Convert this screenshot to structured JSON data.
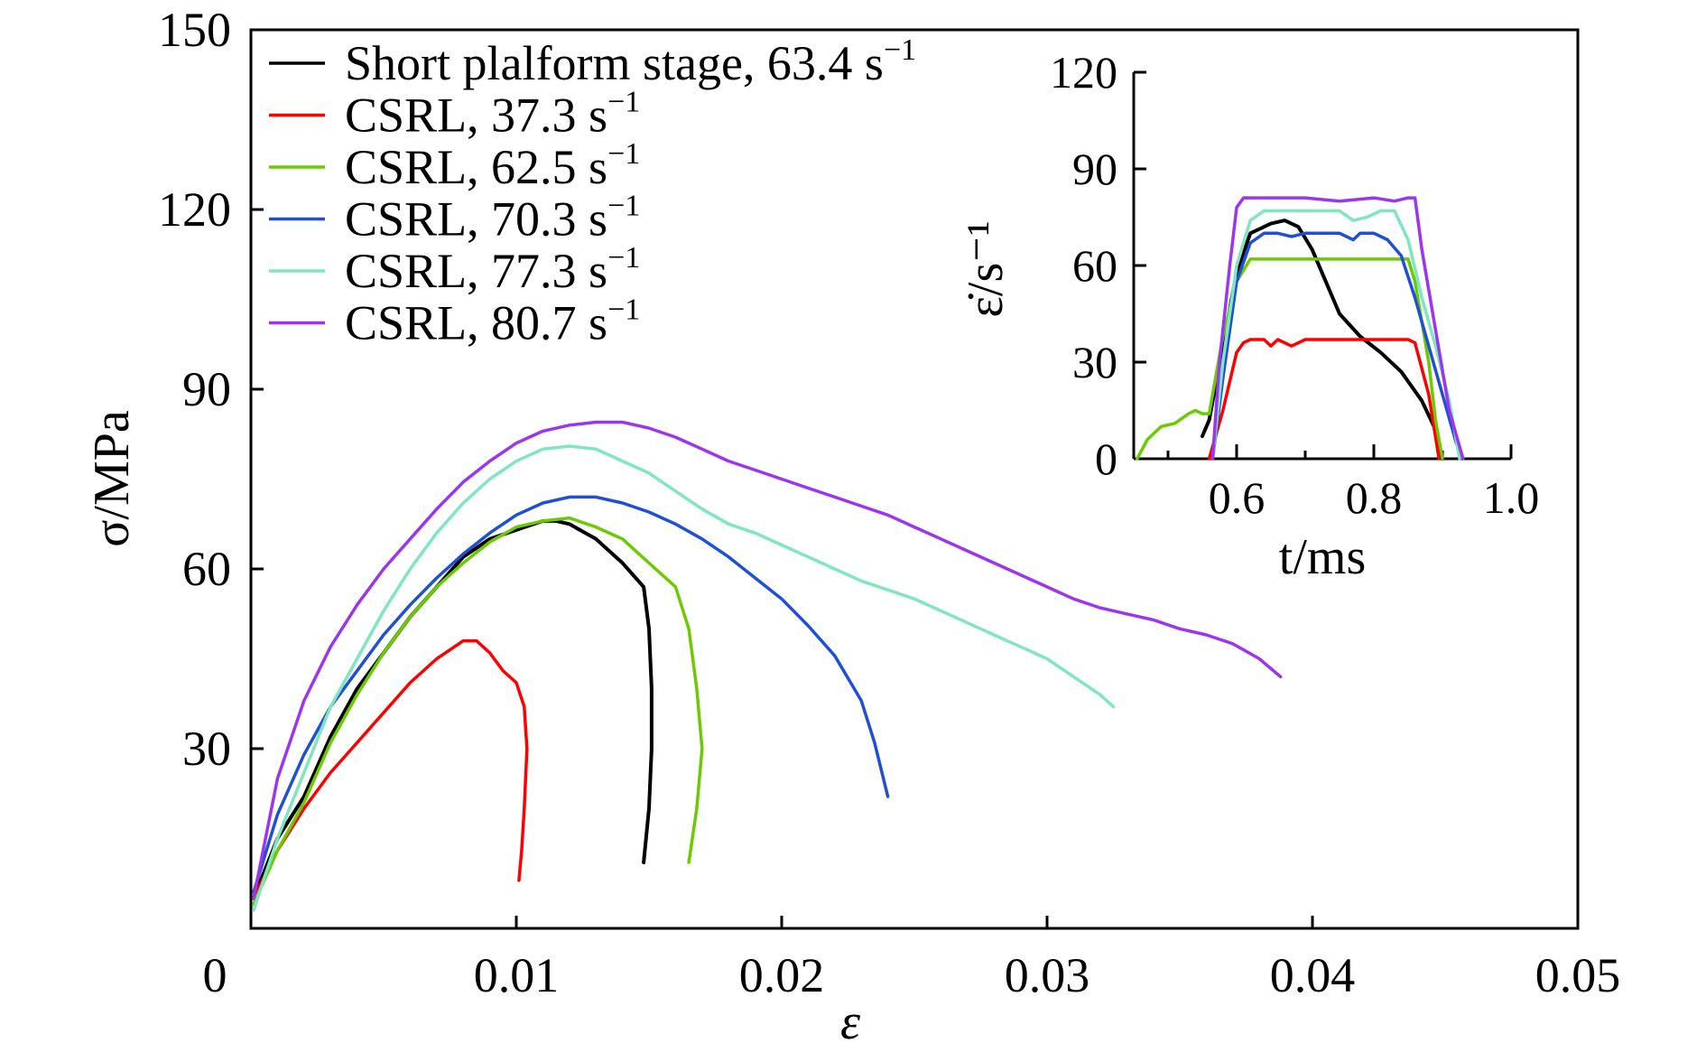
{
  "chart_data": [
    {
      "type": "line",
      "xlabel": "ε",
      "ylabel": "σ/MPa",
      "xlim": [
        0,
        0.05
      ],
      "ylim": [
        0,
        150
      ],
      "xticks": [
        "0",
        "0.01",
        "0.02",
        "0.03",
        "0.04",
        "0.05"
      ],
      "yticks": [
        "30",
        "60",
        "90",
        "120",
        "150"
      ],
      "grid": false,
      "legend_position": "top-left",
      "series": [
        {
          "name": "Short plalform stage, 63.4 s⁻¹",
          "color": "#000000",
          "points": [
            [
              0.0001,
              5
            ],
            [
              0.001,
              15
            ],
            [
              0.002,
              22
            ],
            [
              0.003,
              32
            ],
            [
              0.004,
              40
            ],
            [
              0.005,
              46
            ],
            [
              0.006,
              52
            ],
            [
              0.007,
              57
            ],
            [
              0.008,
              62
            ],
            [
              0.009,
              65
            ],
            [
              0.01,
              66.5
            ],
            [
              0.011,
              68
            ],
            [
              0.0115,
              68
            ],
            [
              0.012,
              67.5
            ],
            [
              0.013,
              65
            ],
            [
              0.014,
              61
            ],
            [
              0.0148,
              57
            ],
            [
              0.015,
              50
            ],
            [
              0.0151,
              40
            ],
            [
              0.0151,
              30
            ],
            [
              0.015,
              20
            ],
            [
              0.0148,
              11
            ]
          ]
        },
        {
          "name": "CSRL, 37.3 s⁻¹",
          "color": "#ff0000",
          "points": [
            [
              0.0001,
              5
            ],
            [
              0.001,
              13
            ],
            [
              0.002,
              20
            ],
            [
              0.003,
              26
            ],
            [
              0.004,
              31
            ],
            [
              0.005,
              36
            ],
            [
              0.006,
              41
            ],
            [
              0.007,
              45
            ],
            [
              0.008,
              48
            ],
            [
              0.0085,
              48
            ],
            [
              0.009,
              46
            ],
            [
              0.0095,
              43
            ],
            [
              0.01,
              41
            ],
            [
              0.0103,
              37
            ],
            [
              0.0104,
              30
            ],
            [
              0.0103,
              20
            ],
            [
              0.0102,
              13
            ],
            [
              0.0101,
              8
            ]
          ]
        },
        {
          "name": "CSRL, 62.5 s⁻¹",
          "color": "#6ccb00",
          "points": [
            [
              0.0001,
              4
            ],
            [
              0.001,
              13
            ],
            [
              0.002,
              21
            ],
            [
              0.003,
              31
            ],
            [
              0.004,
              39
            ],
            [
              0.005,
              46
            ],
            [
              0.006,
              52
            ],
            [
              0.007,
              57
            ],
            [
              0.008,
              61
            ],
            [
              0.009,
              64.5
            ],
            [
              0.01,
              67
            ],
            [
              0.011,
              68
            ],
            [
              0.012,
              68.5
            ],
            [
              0.013,
              67
            ],
            [
              0.014,
              65
            ],
            [
              0.015,
              61
            ],
            [
              0.016,
              57
            ],
            [
              0.0165,
              50
            ],
            [
              0.0168,
              40
            ],
            [
              0.017,
              30
            ],
            [
              0.0168,
              20
            ],
            [
              0.0165,
              11
            ]
          ]
        },
        {
          "name": "CSRL, 70.3 s⁻¹",
          "color": "#1f4fd6",
          "points": [
            [
              0.0001,
              6
            ],
            [
              0.001,
              19
            ],
            [
              0.002,
              29
            ],
            [
              0.003,
              37
            ],
            [
              0.004,
              43
            ],
            [
              0.005,
              49
            ],
            [
              0.006,
              54
            ],
            [
              0.007,
              58.5
            ],
            [
              0.008,
              62.5
            ],
            [
              0.009,
              66
            ],
            [
              0.01,
              69
            ],
            [
              0.011,
              71
            ],
            [
              0.012,
              72
            ],
            [
              0.013,
              72
            ],
            [
              0.014,
              71
            ],
            [
              0.015,
              69.5
            ],
            [
              0.016,
              67.5
            ],
            [
              0.017,
              65
            ],
            [
              0.018,
              62
            ],
            [
              0.019,
              58.5
            ],
            [
              0.02,
              55
            ],
            [
              0.021,
              50.5
            ],
            [
              0.022,
              45.5
            ],
            [
              0.023,
              38
            ],
            [
              0.0235,
              31
            ],
            [
              0.024,
              22
            ]
          ]
        },
        {
          "name": "CSRL, 77.3 s⁻¹",
          "color": "#7fe6c0",
          "points": [
            [
              0.0001,
              3
            ],
            [
              0.001,
              15
            ],
            [
              0.002,
              26
            ],
            [
              0.003,
              37
            ],
            [
              0.004,
              45
            ],
            [
              0.005,
              53
            ],
            [
              0.006,
              60
            ],
            [
              0.007,
              66
            ],
            [
              0.008,
              71
            ],
            [
              0.009,
              75
            ],
            [
              0.01,
              78
            ],
            [
              0.011,
              80
            ],
            [
              0.012,
              80.5
            ],
            [
              0.013,
              80
            ],
            [
              0.014,
              78
            ],
            [
              0.015,
              76
            ],
            [
              0.016,
              73
            ],
            [
              0.017,
              70
            ],
            [
              0.018,
              67.5
            ],
            [
              0.019,
              66
            ],
            [
              0.02,
              64
            ],
            [
              0.021,
              62
            ],
            [
              0.022,
              60
            ],
            [
              0.023,
              58
            ],
            [
              0.024,
              56.5
            ],
            [
              0.025,
              55
            ],
            [
              0.026,
              53
            ],
            [
              0.027,
              51
            ],
            [
              0.028,
              49
            ],
            [
              0.029,
              47
            ],
            [
              0.03,
              45
            ],
            [
              0.031,
              42
            ],
            [
              0.032,
              39
            ],
            [
              0.0325,
              37
            ]
          ]
        },
        {
          "name": "CSRL, 80.7 s⁻¹",
          "color": "#9b35ef",
          "points": [
            [
              0.0001,
              5
            ],
            [
              0.001,
              25
            ],
            [
              0.002,
              38
            ],
            [
              0.003,
              47
            ],
            [
              0.004,
              54
            ],
            [
              0.005,
              60
            ],
            [
              0.006,
              65
            ],
            [
              0.007,
              70
            ],
            [
              0.008,
              74.5
            ],
            [
              0.009,
              78
            ],
            [
              0.01,
              81
            ],
            [
              0.011,
              83
            ],
            [
              0.012,
              84
            ],
            [
              0.013,
              84.5
            ],
            [
              0.014,
              84.5
            ],
            [
              0.015,
              83.5
            ],
            [
              0.016,
              82
            ],
            [
              0.017,
              80
            ],
            [
              0.018,
              78
            ],
            [
              0.019,
              76.5
            ],
            [
              0.02,
              75
            ],
            [
              0.021,
              73.5
            ],
            [
              0.022,
              72
            ],
            [
              0.023,
              70.5
            ],
            [
              0.024,
              69
            ],
            [
              0.025,
              67
            ],
            [
              0.026,
              65
            ],
            [
              0.027,
              63
            ],
            [
              0.028,
              61
            ],
            [
              0.029,
              59
            ],
            [
              0.03,
              57
            ],
            [
              0.031,
              55
            ],
            [
              0.032,
              53.5
            ],
            [
              0.033,
              52.5
            ],
            [
              0.034,
              51.5
            ],
            [
              0.035,
              50
            ],
            [
              0.036,
              49
            ],
            [
              0.037,
              47.5
            ],
            [
              0.038,
              45
            ],
            [
              0.0388,
              42
            ]
          ]
        }
      ]
    },
    {
      "type": "line",
      "xlabel": "t/ms",
      "ylabel": "ε̇/s⁻¹",
      "xlim": [
        0.45,
        1.0
      ],
      "ylim": [
        0,
        120
      ],
      "xticks": [
        "0.6",
        "0.8",
        "1.0"
      ],
      "yticks": [
        "0",
        "30",
        "60",
        "90",
        "120"
      ],
      "grid": false,
      "series": [
        {
          "color": "#000000",
          "points": [
            [
              0.55,
              7
            ],
            [
              0.56,
              12
            ],
            [
              0.58,
              35
            ],
            [
              0.6,
              58
            ],
            [
              0.62,
              70
            ],
            [
              0.65,
              73
            ],
            [
              0.67,
              74
            ],
            [
              0.69,
              72
            ],
            [
              0.71,
              65
            ],
            [
              0.73,
              55
            ],
            [
              0.75,
              45
            ],
            [
              0.78,
              38
            ],
            [
              0.81,
              33
            ],
            [
              0.84,
              27
            ],
            [
              0.87,
              18
            ],
            [
              0.89,
              9
            ],
            [
              0.9,
              0
            ]
          ]
        },
        {
          "color": "#ff0000",
          "points": [
            [
              0.56,
              0
            ],
            [
              0.58,
              15
            ],
            [
              0.6,
              33
            ],
            [
              0.61,
              36
            ],
            [
              0.62,
              37
            ],
            [
              0.64,
              37
            ],
            [
              0.65,
              35
            ],
            [
              0.66,
              37
            ],
            [
              0.68,
              35
            ],
            [
              0.7,
              37
            ],
            [
              0.75,
              37
            ],
            [
              0.8,
              37
            ],
            [
              0.85,
              37
            ],
            [
              0.86,
              36
            ],
            [
              0.88,
              20
            ],
            [
              0.895,
              0
            ]
          ]
        },
        {
          "color": "#6ccb00",
          "points": [
            [
              0.455,
              0
            ],
            [
              0.47,
              6
            ],
            [
              0.49,
              10
            ],
            [
              0.51,
              11
            ],
            [
              0.53,
              14
            ],
            [
              0.54,
              15
            ],
            [
              0.55,
              14
            ],
            [
              0.56,
              14
            ],
            [
              0.58,
              38
            ],
            [
              0.6,
              55
            ],
            [
              0.62,
              62
            ],
            [
              0.65,
              62
            ],
            [
              0.7,
              62
            ],
            [
              0.75,
              62
            ],
            [
              0.8,
              62
            ],
            [
              0.85,
              62
            ],
            [
              0.86,
              55
            ],
            [
              0.88,
              30
            ],
            [
              0.89,
              12
            ],
            [
              0.9,
              0
            ]
          ]
        },
        {
          "color": "#1f4fd6",
          "points": [
            [
              0.565,
              0
            ],
            [
              0.58,
              25
            ],
            [
              0.6,
              55
            ],
            [
              0.62,
              67
            ],
            [
              0.64,
              70
            ],
            [
              0.66,
              70
            ],
            [
              0.68,
              69
            ],
            [
              0.7,
              70
            ],
            [
              0.75,
              70
            ],
            [
              0.77,
              68
            ],
            [
              0.78,
              70
            ],
            [
              0.8,
              70
            ],
            [
              0.82,
              68
            ],
            [
              0.84,
              63
            ],
            [
              0.86,
              50
            ],
            [
              0.88,
              35
            ],
            [
              0.9,
              20
            ],
            [
              0.92,
              5
            ],
            [
              0.93,
              0
            ]
          ]
        },
        {
          "color": "#7fe6c0",
          "points": [
            [
              0.565,
              0
            ],
            [
              0.58,
              30
            ],
            [
              0.6,
              60
            ],
            [
              0.62,
              74
            ],
            [
              0.64,
              77
            ],
            [
              0.7,
              77
            ],
            [
              0.75,
              77
            ],
            [
              0.77,
              74
            ],
            [
              0.79,
              75
            ],
            [
              0.81,
              77
            ],
            [
              0.83,
              77
            ],
            [
              0.85,
              68
            ],
            [
              0.87,
              50
            ],
            [
              0.89,
              35
            ],
            [
              0.91,
              18
            ],
            [
              0.925,
              0
            ]
          ]
        },
        {
          "color": "#9b35ef",
          "points": [
            [
              0.565,
              0
            ],
            [
              0.575,
              30
            ],
            [
              0.59,
              60
            ],
            [
              0.6,
              78
            ],
            [
              0.61,
              81
            ],
            [
              0.65,
              81
            ],
            [
              0.7,
              81
            ],
            [
              0.75,
              80
            ],
            [
              0.8,
              81
            ],
            [
              0.83,
              80
            ],
            [
              0.85,
              81
            ],
            [
              0.86,
              81
            ],
            [
              0.87,
              65
            ],
            [
              0.89,
              40
            ],
            [
              0.91,
              15
            ],
            [
              0.93,
              0
            ]
          ]
        }
      ]
    }
  ]
}
